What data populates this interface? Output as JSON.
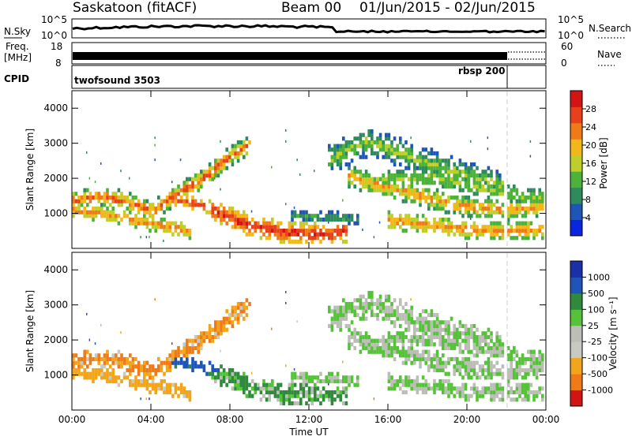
{
  "header": {
    "title": "Saskatoon (fitACF)",
    "beam": "Beam 00",
    "date_range": "01/Jun/2015 - 02/Jun/2015"
  },
  "panels": {
    "nsky": {
      "label": "N.Sky",
      "ticks": [
        "10^5",
        "10^0"
      ]
    },
    "nsearch": {
      "label": "N.Search",
      "ticks": [
        "10^5",
        "10^0"
      ]
    },
    "freq": {
      "label_line1": "Freq.",
      "label_line2": "[MHz]",
      "ticks": [
        "18",
        "8"
      ]
    },
    "nave": {
      "label": "Nave",
      "ticks": [
        "60",
        "0"
      ]
    },
    "cpid": {
      "label": "CPID",
      "programs": [
        "twofsound 3503",
        "rbsp 200"
      ]
    }
  },
  "colors": {
    "power_scale": [
      "#0a25e0",
      "#1f55b8",
      "#2e8c5c",
      "#4cb23a",
      "#bfcf2a",
      "#f2b81a",
      "#f07a17",
      "#e8401a",
      "#d41414"
    ],
    "velocity_scale": [
      "#d41414",
      "#f07a17",
      "#f2a51a",
      "#c9c9c4",
      "#bdbdb8",
      "#55c23a",
      "#2f8a3c",
      "#1f55b8",
      "#1a2fa8"
    ]
  },
  "chart_data": [
    {
      "type": "heatmap",
      "panel": "power",
      "xlabel": "Time UT",
      "ylabel": "Slant Range [km]",
      "xticks": [
        "00:00",
        "04:00",
        "08:00",
        "12:00",
        "16:00",
        "20:00",
        "00:00"
      ],
      "yticks": [
        "1000",
        "2000",
        "3000",
        "4000"
      ],
      "ylim": [
        0,
        4500
      ],
      "colorbar_label": "Power [dB]",
      "colorbar_ticks": [
        "4",
        "8",
        "12",
        "16",
        "20",
        "24",
        "28"
      ],
      "colorbar_range": [
        0,
        32
      ]
    },
    {
      "type": "heatmap",
      "panel": "velocity",
      "xlabel": "Time UT",
      "ylabel": "Slant Range [km]",
      "xticks": [
        "00:00",
        "04:00",
        "08:00",
        "12:00",
        "16:00",
        "20:00",
        "00:00"
      ],
      "yticks": [
        "1000",
        "2000",
        "3000",
        "4000"
      ],
      "ylim": [
        0,
        4500
      ],
      "colorbar_label": "Velocity [m s⁻¹]",
      "colorbar_ticks": [
        "-1000",
        "-500",
        "-100",
        "-25",
        "25",
        "100",
        "500",
        "1000"
      ],
      "colorbar_range": [
        -1250,
        1250
      ]
    }
  ]
}
